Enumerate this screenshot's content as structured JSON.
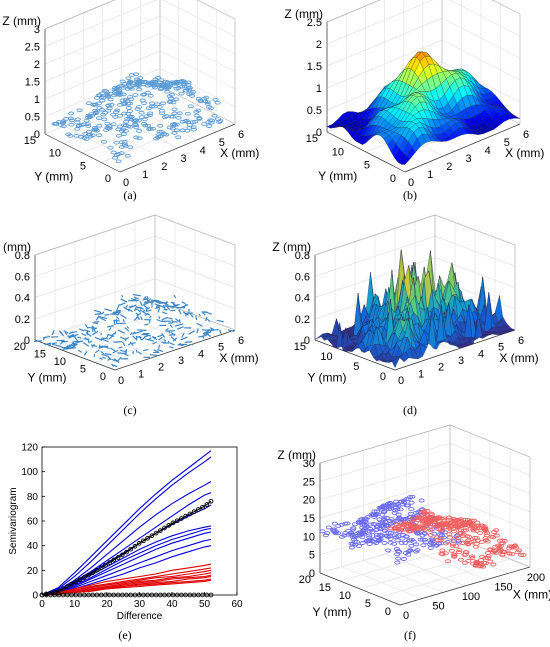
{
  "captions": {
    "a": "(a)",
    "b": "(b)",
    "c": "(c)",
    "d": "(d)",
    "e": "(e)",
    "f": "(f)"
  },
  "chart_data": [
    {
      "id": "a",
      "type": "scatter",
      "xlabel": "X (mm)",
      "ylabel": "Y (mm)",
      "zlabel": "Z (mm)",
      "x_ticks": [
        "0",
        "1",
        "2",
        "3",
        "4",
        "5",
        "6"
      ],
      "y_ticks": [
        "0",
        "5",
        "10",
        "15"
      ],
      "z_ticks": [
        "0",
        "0.5",
        "1",
        "1.5",
        "2",
        "2.5",
        "3"
      ],
      "xlim": [
        0,
        6
      ],
      "ylim": [
        0,
        18
      ],
      "zlim": [
        0,
        3
      ],
      "marker_color": "#5b9bd5"
    },
    {
      "id": "b",
      "type": "surface",
      "xlabel": "X (mm)",
      "ylabel": "Y (mm)",
      "zlabel": "Z (mm)",
      "x_ticks": [
        "0",
        "1",
        "2",
        "3",
        "4",
        "5",
        "6"
      ],
      "y_ticks": [
        "0",
        "5",
        "10",
        "15"
      ],
      "z_ticks": [
        "0",
        "0.5",
        "1",
        "1.5",
        "2",
        "2.5"
      ],
      "xlim": [
        0,
        6
      ],
      "ylim": [
        0,
        18
      ],
      "zlim": [
        0,
        2.6
      ],
      "colormap": "jet"
    },
    {
      "id": "c",
      "type": "scatter",
      "xlabel": "X (mm)",
      "ylabel": "Y (mm)",
      "zlabel": "Z (mm)",
      "x_ticks": [
        "0",
        "1",
        "2",
        "3",
        "4",
        "5",
        "6"
      ],
      "y_ticks": [
        "0",
        "5",
        "10",
        "15",
        "20"
      ],
      "z_ticks": [
        "0",
        "0.2",
        "0.4",
        "0.6",
        "0.8"
      ],
      "xlim": [
        0,
        6
      ],
      "ylim": [
        0,
        20
      ],
      "zlim": [
        0,
        0.8
      ],
      "marker_color": "#3a86c8"
    },
    {
      "id": "d",
      "type": "surface",
      "xlabel": "X (mm)",
      "ylabel": "Y (mm)",
      "zlabel": "Z (mm)",
      "x_ticks": [
        "0",
        "1",
        "2",
        "3",
        "4",
        "5",
        "6"
      ],
      "y_ticks": [
        "0",
        "5",
        "10",
        "15"
      ],
      "z_ticks": [
        "0",
        "0.2",
        "0.4",
        "0.6",
        "0.8"
      ],
      "xlim": [
        0,
        6
      ],
      "ylim": [
        0,
        18
      ],
      "zlim": [
        0,
        0.8
      ],
      "colormap": "parula"
    },
    {
      "id": "e",
      "type": "line",
      "xlabel": "Difference",
      "ylabel": "Semivariogram",
      "x_ticks": [
        "0",
        "10",
        "20",
        "30",
        "40",
        "50",
        "60"
      ],
      "y_ticks": [
        "0",
        "20",
        "40",
        "60",
        "80",
        "100",
        "120"
      ],
      "xlim": [
        0,
        60
      ],
      "ylim": [
        0,
        120
      ],
      "x": [
        0,
        5,
        10,
        15,
        20,
        25,
        30,
        35,
        40,
        45,
        50,
        52
      ],
      "series_colors": {
        "blue": "#0000e0",
        "red": "#e00000",
        "black": "#000000"
      },
      "series": [
        {
          "color": "blue",
          "values": [
            0,
            6,
            18,
            31,
            44,
            57,
            70,
            82,
            93,
            103,
            113,
            117
          ]
        },
        {
          "color": "blue",
          "values": [
            0,
            5,
            15,
            27,
            40,
            53,
            66,
            78,
            89,
            99,
            108,
            112
          ]
        },
        {
          "color": "blue",
          "values": [
            0,
            4,
            12,
            22,
            33,
            44,
            55,
            65,
            74,
            82,
            89,
            92
          ]
        },
        {
          "color": "blue",
          "values": [
            0,
            4,
            11,
            19,
            28,
            37,
            46,
            55,
            64,
            73,
            81,
            83
          ]
        },
        {
          "color": "blue",
          "values": [
            0,
            3,
            10,
            18,
            26,
            34,
            42,
            50,
            57,
            64,
            70,
            73
          ]
        },
        {
          "color": "blue",
          "values": [
            0,
            3,
            9,
            16,
            23,
            30,
            37,
            43,
            48,
            52,
            55,
            56
          ]
        },
        {
          "color": "blue",
          "values": [
            0,
            3,
            8,
            14,
            21,
            28,
            34,
            40,
            45,
            49,
            53,
            54
          ]
        },
        {
          "color": "blue",
          "values": [
            0,
            2,
            7,
            13,
            19,
            25,
            31,
            37,
            42,
            46,
            50,
            51
          ]
        },
        {
          "color": "blue",
          "values": [
            0,
            2,
            6,
            11,
            16,
            21,
            26,
            31,
            36,
            40,
            44,
            45
          ]
        },
        {
          "color": "blue",
          "values": [
            0,
            2,
            5,
            9,
            13,
            17,
            22,
            26,
            31,
            35,
            39,
            40
          ]
        },
        {
          "color": "red",
          "values": [
            0,
            2,
            5,
            8,
            11,
            13,
            15,
            17,
            20,
            22,
            24,
            25
          ]
        },
        {
          "color": "red",
          "values": [
            0,
            2,
            4,
            7,
            9,
            11,
            13,
            15,
            17,
            19,
            21,
            22
          ]
        },
        {
          "color": "red",
          "values": [
            0,
            1,
            4,
            6,
            8,
            10,
            12,
            14,
            15,
            17,
            19,
            20
          ]
        },
        {
          "color": "red",
          "values": [
            0,
            1,
            3,
            5,
            7,
            9,
            11,
            12,
            14,
            15,
            17,
            18
          ]
        },
        {
          "color": "red",
          "values": [
            0,
            1,
            3,
            5,
            6,
            8,
            10,
            11,
            13,
            14,
            15,
            16
          ]
        },
        {
          "color": "red",
          "values": [
            0,
            1,
            3,
            4,
            6,
            7,
            9,
            10,
            11,
            13,
            14,
            15
          ]
        },
        {
          "color": "red",
          "values": [
            0,
            1,
            2,
            4,
            5,
            7,
            8,
            9,
            10,
            11,
            12,
            13
          ]
        },
        {
          "color": "red",
          "values": [
            0,
            1,
            2,
            3,
            5,
            6,
            7,
            8,
            9,
            10,
            11,
            12
          ]
        },
        {
          "color": "black",
          "marker": "circle",
          "values": [
            0,
            3,
            10,
            17,
            25,
            33,
            42,
            50,
            58,
            65,
            72,
            76
          ]
        },
        {
          "color": "black",
          "marker": "circle",
          "values": [
            0,
            0,
            0,
            0,
            0,
            0,
            0,
            0,
            0,
            0,
            0,
            0
          ]
        }
      ]
    },
    {
      "id": "f",
      "type": "scatter",
      "xlabel": "X (mm)",
      "ylabel": "Y (mm)",
      "zlabel": "Z (mm)",
      "x_ticks": [
        "0",
        "50",
        "100",
        "150",
        "200"
      ],
      "y_ticks": [
        "0",
        "5",
        "10",
        "15",
        "20"
      ],
      "z_ticks": [
        "0",
        "5",
        "10",
        "15",
        "20",
        "25",
        "30"
      ],
      "xlim": [
        0,
        200
      ],
      "ylim": [
        0,
        20
      ],
      "zlim": [
        0,
        30
      ],
      "series": [
        {
          "color": "#6b6bf0"
        },
        {
          "color": "#f06060"
        }
      ]
    }
  ]
}
